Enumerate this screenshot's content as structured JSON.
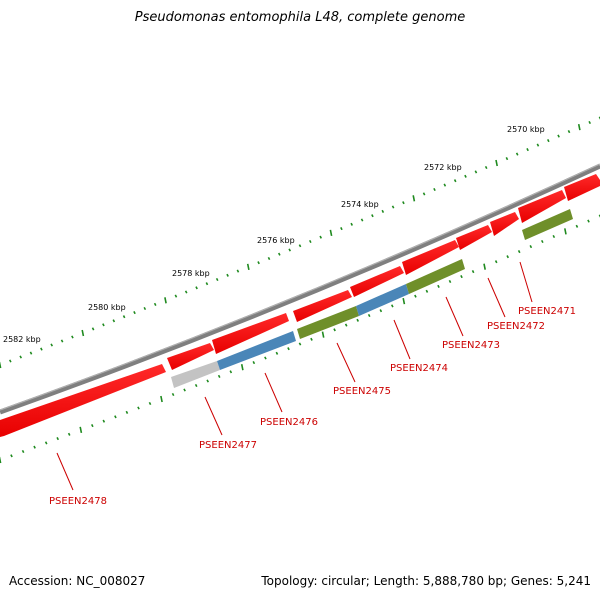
{
  "title": "Pseudomonas entomophila L48, complete genome",
  "footer": {
    "accession": "Accession: NC_008027",
    "stats": "Topology: circular; Length: 5,888,780 bp; Genes: 5,241"
  },
  "colors": {
    "backbone": "#808080",
    "gene_forward": "#ff0000",
    "feature_green": "#6b8e23",
    "feature_blue": "#4682b4",
    "feature_gray": "#c0c0c0",
    "tick": "#1f8a1f",
    "label": "#cc0000"
  },
  "scale_labels": [
    {
      "kbp": 2570,
      "text": "2570 kbp"
    },
    {
      "kbp": 2572,
      "text": "2572 kbp"
    },
    {
      "kbp": 2574,
      "text": "2574 kbp"
    },
    {
      "kbp": 2576,
      "text": "2576 kbp"
    },
    {
      "kbp": 2578,
      "text": "2578 kbp"
    },
    {
      "kbp": 2580,
      "text": "2580 kbp"
    },
    {
      "kbp": 2582,
      "text": "2582 kbp"
    }
  ],
  "gene_labels": [
    "PSEEN2471",
    "PSEEN2472",
    "PSEEN2473",
    "PSEEN2474",
    "PSEEN2475",
    "PSEEN2476",
    "PSEEN2477",
    "PSEEN2478"
  ]
}
